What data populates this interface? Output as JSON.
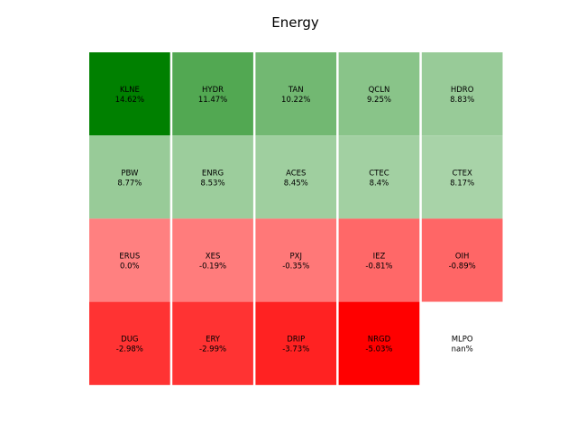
{
  "chart_data": {
    "type": "heatmap",
    "title": "Energy",
    "rows": [
      [
        {
          "ticker": "KLNE",
          "change_label": "14.62%",
          "change": 14.62,
          "color": "#008000"
        },
        {
          "ticker": "HYDR",
          "change_label": "11.47%",
          "change": 11.47,
          "color": "#52a852"
        },
        {
          "ticker": "TAN",
          "change_label": "10.22%",
          "change": 10.22,
          "color": "#72b872"
        },
        {
          "ticker": "QCLN",
          "change_label": "9.25%",
          "change": 9.25,
          "color": "#89c489"
        },
        {
          "ticker": "HDRO",
          "change_label": "8.83%",
          "change": 8.83,
          "color": "#98cb98"
        }
      ],
      [
        {
          "ticker": "PBW",
          "change_label": "8.77%",
          "change": 8.77,
          "color": "#98cb98"
        },
        {
          "ticker": "ENRG",
          "change_label": "8.53%",
          "change": 8.53,
          "color": "#9ccd9c"
        },
        {
          "ticker": "ACES",
          "change_label": "8.45%",
          "change": 8.45,
          "color": "#9fcf9f"
        },
        {
          "ticker": "CTEC",
          "change_label": "8.4%",
          "change": 8.4,
          "color": "#a2d0a2"
        },
        {
          "ticker": "CTEX",
          "change_label": "8.17%",
          "change": 8.17,
          "color": "#a8d3a8"
        }
      ],
      [
        {
          "ticker": "ERUS",
          "change_label": "0.0%",
          "change": 0.0,
          "color": "#ff8080"
        },
        {
          "ticker": "XES",
          "change_label": "-0.19%",
          "change": -0.19,
          "color": "#ff7c7c"
        },
        {
          "ticker": "PXJ",
          "change_label": "-0.35%",
          "change": -0.35,
          "color": "#ff7878"
        },
        {
          "ticker": "IEZ",
          "change_label": "-0.81%",
          "change": -0.81,
          "color": "#ff6868"
        },
        {
          "ticker": "OIH",
          "change_label": "-0.89%",
          "change": -0.89,
          "color": "#ff6666"
        }
      ],
      [
        {
          "ticker": "DUG",
          "change_label": "-2.98%",
          "change": -2.98,
          "color": "#ff3333"
        },
        {
          "ticker": "ERY",
          "change_label": "-2.99%",
          "change": -2.99,
          "color": "#ff3333"
        },
        {
          "ticker": "DRIP",
          "change_label": "-3.73%",
          "change": -3.73,
          "color": "#ff2222"
        },
        {
          "ticker": "NRGD",
          "change_label": "-5.03%",
          "change": -5.03,
          "color": "#ff0000"
        },
        {
          "ticker": "MLPO",
          "change_label": "nan%",
          "change": null,
          "color": "#ffffff"
        }
      ]
    ]
  }
}
